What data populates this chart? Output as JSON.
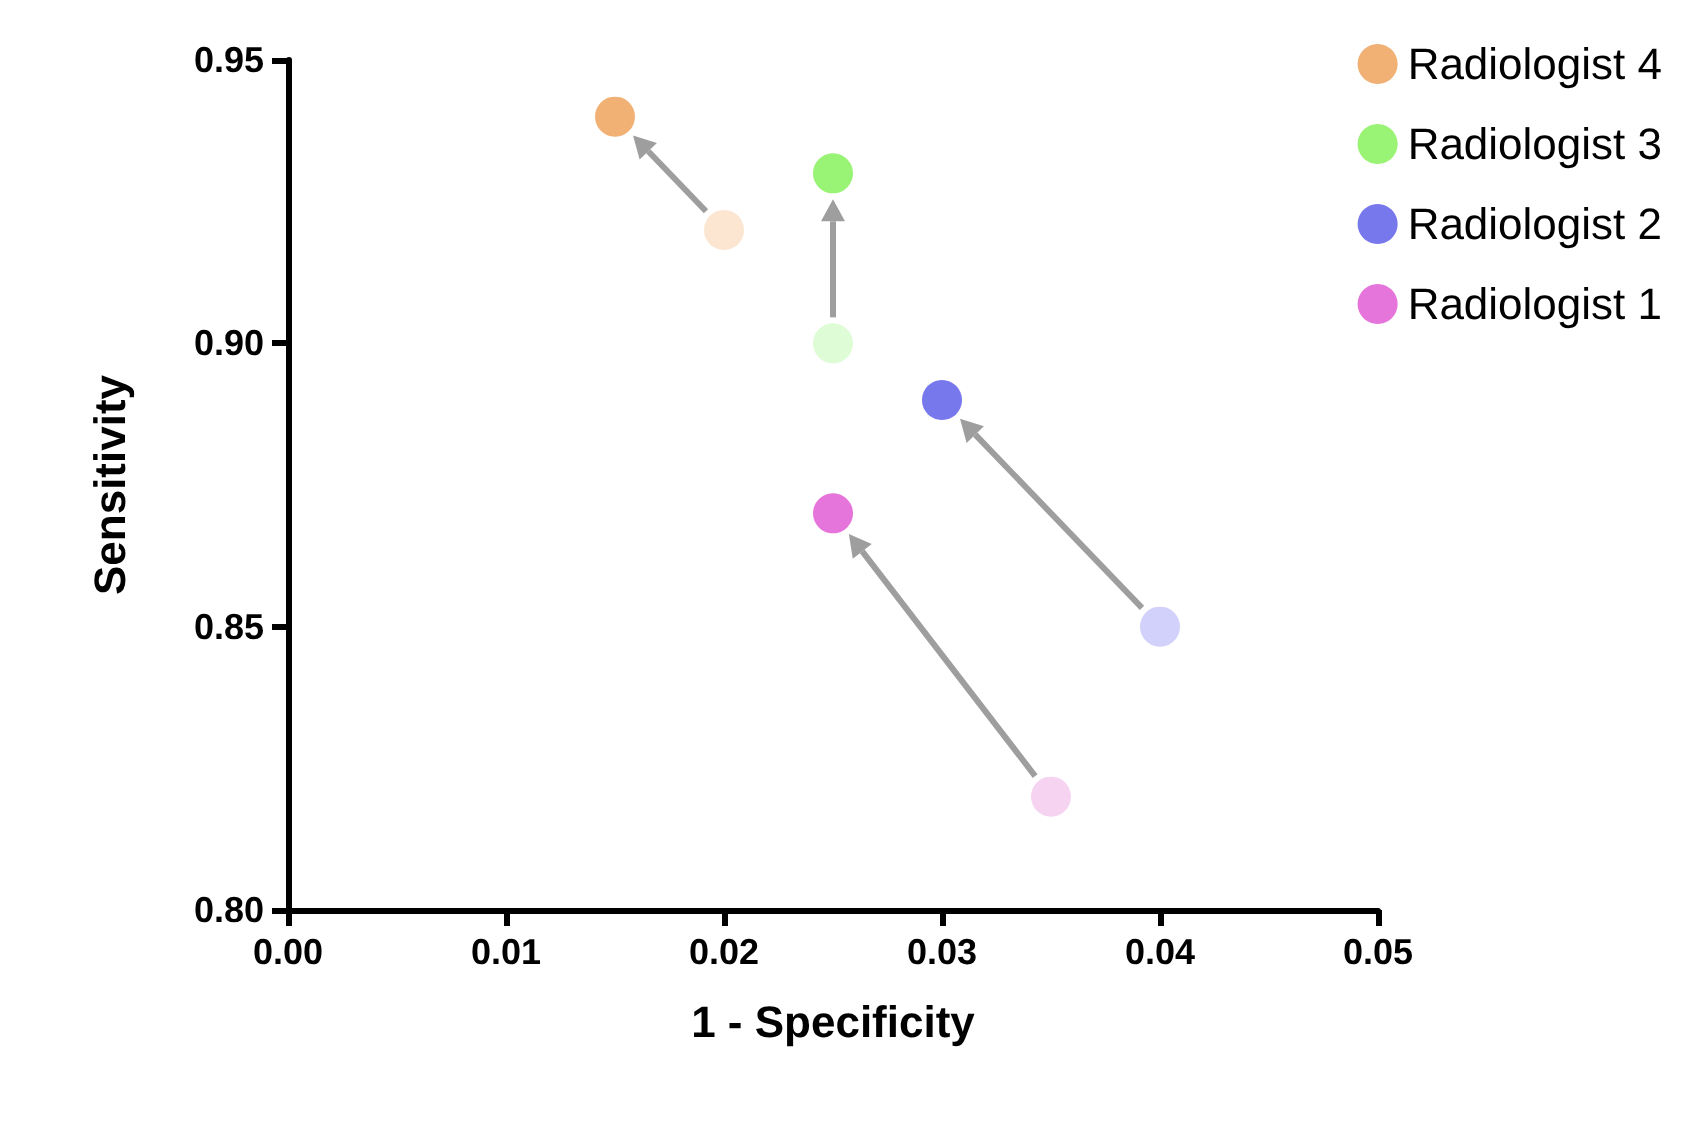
{
  "chart_data": {
    "type": "scatter",
    "xlabel": "1 - Specificity",
    "ylabel": "Sensitivity",
    "xlim": [
      0,
      0.05
    ],
    "xticks": [
      {
        "value": 0,
        "label": "0.00"
      },
      {
        "value": 0.01,
        "label": "0.01"
      },
      {
        "value": 0.02,
        "label": "0.02"
      },
      {
        "value": 0.03,
        "label": "0.03"
      },
      {
        "value": 0.04,
        "label": "0.04"
      },
      {
        "value": 0.05,
        "label": "0.05"
      }
    ],
    "ylim": [
      0.8,
      0.95
    ],
    "yticks": [
      {
        "value": 0.8,
        "label": "0.80"
      },
      {
        "value": 0.85,
        "label": "0.85"
      },
      {
        "value": 0.9,
        "label": "0.90"
      },
      {
        "value": 0.95,
        "label": "0.95"
      }
    ],
    "grid": false,
    "legend": "top right",
    "marker": "circle",
    "series": [
      {
        "name": "Radiologist 4",
        "color": "#ee9e52",
        "colors": [
          "#fbe0c6",
          "#ee9e52"
        ],
        "x": [
          0.02,
          0.015
        ],
        "values": [
          0.92,
          0.94
        ]
      },
      {
        "name": "Radiologist 3",
        "color": "#7ff052",
        "colors": [
          "#d6fbcc",
          "#7ff052"
        ],
        "x": [
          0.025,
          0.025
        ],
        "values": [
          0.9,
          0.93
        ]
      },
      {
        "name": "Radiologist 2",
        "color": "#5656e8",
        "colors": [
          "#c6c6fa",
          "#5656e8"
        ],
        "x": [
          0.04,
          0.03
        ],
        "values": [
          0.85,
          0.89
        ]
      },
      {
        "name": "Radiologist 1",
        "color": "#e052d2",
        "colors": [
          "#f2c8ee",
          "#e052d2"
        ],
        "x": [
          0.035,
          0.025
        ],
        "values": [
          0.82,
          0.87
        ]
      }
    ]
  }
}
